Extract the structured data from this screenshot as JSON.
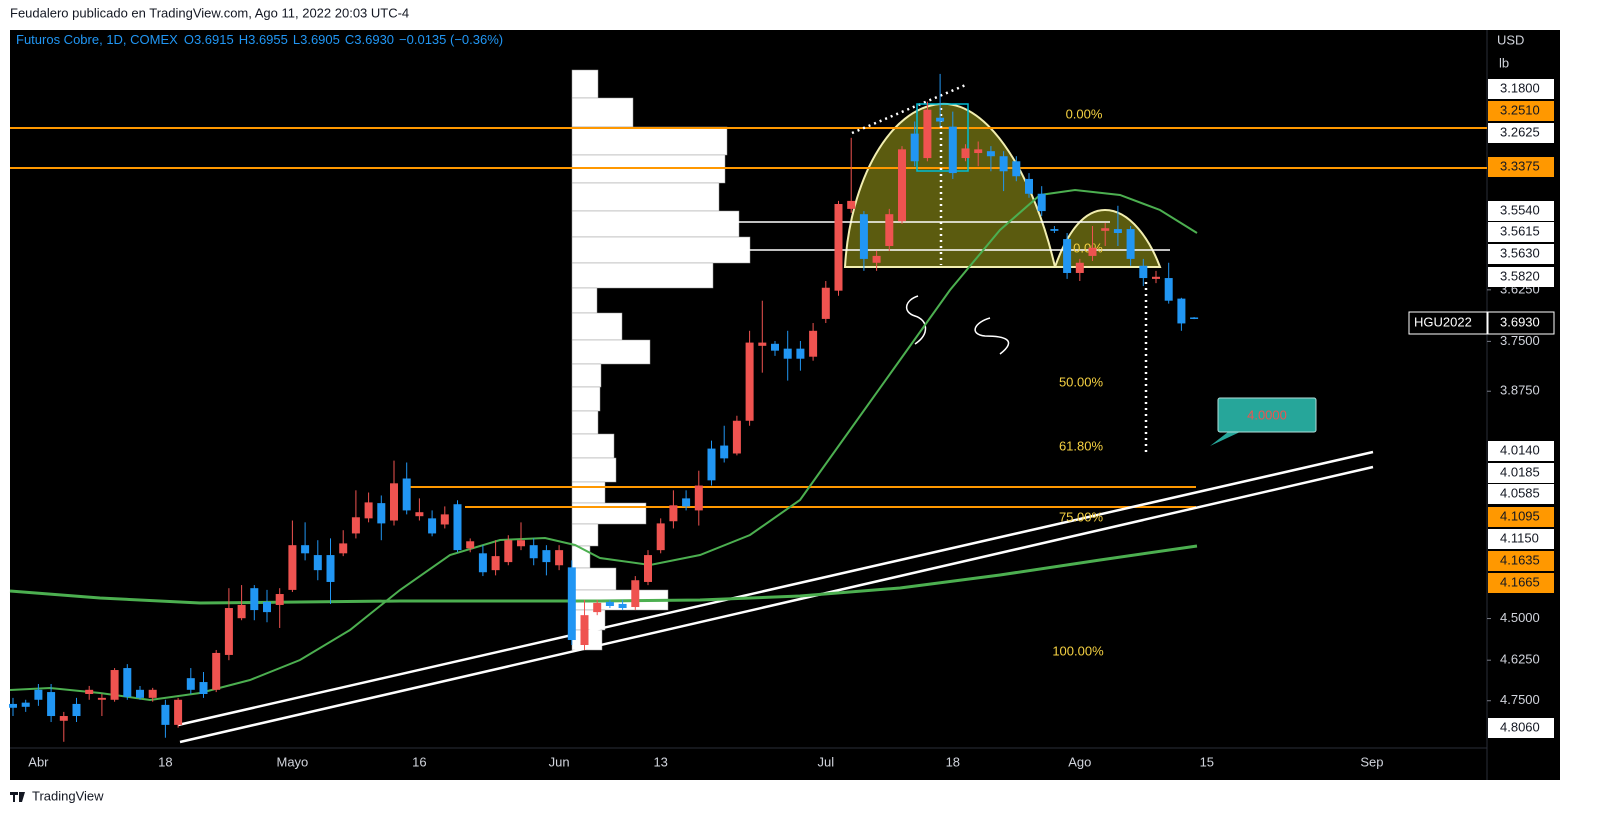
{
  "watermark": "Feudalero publicado en TradingView.com, Ago 11, 2022 20:03 UTC-4",
  "footer": "TradingView",
  "chart_data": {
    "type": "candlestick",
    "header": {
      "title": "Futuros Cobre, 1D, COMEX",
      "ohlc": [
        {
          "key": "O",
          "label": "3.6915"
        },
        {
          "key": "H",
          "label": "3.6955"
        },
        {
          "key": "L",
          "label": "3.6905"
        },
        {
          "key": "C",
          "label": "3.6930"
        }
      ],
      "change": "−0.0135 (−0.36%)"
    },
    "currency": "USD",
    "unit": "lb",
    "last_price": {
      "symbol": "HGU2022",
      "label": "3.6930"
    },
    "categories": [
      null,
      null,
      "Abr",
      null,
      null,
      null,
      null,
      null,
      null,
      null,
      null,
      null,
      "18",
      null,
      null,
      null,
      null,
      null,
      null,
      null,
      null,
      null,
      "Mayo",
      null,
      null,
      null,
      null,
      null,
      null,
      null,
      null,
      null,
      "16",
      null,
      null,
      null,
      null,
      null,
      null,
      null,
      null,
      null,
      null,
      "Jun",
      null,
      null,
      null,
      null,
      null,
      null,
      null,
      "13",
      null,
      null,
      null,
      null,
      null,
      null,
      null,
      null,
      null,
      null,
      null,
      null,
      "Jul",
      null,
      null,
      null,
      null,
      null,
      null,
      null,
      null,
      null,
      "18",
      null,
      null,
      null,
      null,
      null,
      null,
      null,
      null,
      null,
      "Ago",
      null,
      null,
      null,
      null,
      null,
      null,
      null,
      null,
      null,
      "15",
      null,
      null,
      null,
      null,
      null,
      null,
      null,
      null,
      null,
      null,
      null,
      null,
      "Sep",
      null,
      null,
      null,
      null,
      null,
      null,
      null,
      null,
      null
    ],
    "open": [
      4.76,
      4.756,
      4.716,
      4.723,
      4.813,
      4.76,
      4.729,
      4.747,
      4.747,
      4.649,
      4.716,
      4.741,
      4.763,
      4.826,
      4.68,
      4.692,
      4.716,
      4.609,
      4.499,
      4.411,
      4.451,
      4.46,
      4.416,
      4.288,
      4.316,
      4.316,
      4.311,
      4.255,
      4.213,
      4.171,
      4.219,
      4.104,
      4.207,
      4.213,
      4.23,
      4.174,
      4.297,
      4.311,
      4.359,
      4.336,
      4.291,
      4.288,
      4.302,
      4.345,
      4.351,
      4.579,
      4.481,
      4.451,
      4.457,
      4.466,
      4.393,
      4.302,
      4.221,
      4.158,
      4.191,
      4.024,
      4.016,
      4.037,
      3.951,
      3.761,
      3.756,
      3.768,
      3.768,
      3.788,
      3.695,
      3.627,
      3.437,
      3.449,
      3.561,
      3.522,
      3.465,
      3.271,
      3.324,
      3.237,
      3.256,
      3.324,
      3.313,
      3.309,
      3.32,
      3.331,
      3.37,
      3.403,
      3.483,
      3.506,
      3.585,
      3.545,
      3.487,
      3.483,
      3.483,
      3.568,
      3.599,
      3.597,
      3.646,
      3.6915,
      null,
      null,
      null,
      null,
      null,
      null,
      null,
      null,
      null,
      null,
      null,
      null,
      null,
      null,
      null,
      null,
      null,
      null,
      null,
      null,
      null,
      null,
      null
    ],
    "high": [
      4.798,
      4.785,
      4.766,
      4.817,
      4.88,
      4.817,
      4.747,
      4.798,
      4.753,
      4.747,
      4.747,
      4.753,
      4.867,
      4.835,
      4.729,
      4.741,
      4.723,
      4.625,
      4.505,
      4.505,
      4.511,
      4.528,
      4.422,
      4.331,
      4.388,
      4.457,
      4.319,
      4.269,
      4.224,
      4.274,
      4.233,
      4.202,
      4.219,
      4.263,
      4.241,
      4.308,
      4.308,
      4.376,
      4.374,
      4.345,
      4.302,
      4.345,
      4.374,
      4.359,
      4.579,
      4.594,
      4.49,
      4.469,
      4.475,
      4.475,
      4.402,
      4.311,
      4.241,
      4.191,
      4.233,
      4.123,
      4.061,
      4.042,
      3.964,
      3.828,
      3.786,
      3.848,
      3.823,
      3.798,
      3.705,
      3.639,
      3.446,
      3.58,
      3.58,
      3.533,
      3.471,
      3.342,
      3.331,
      3.256,
      3.37,
      3.331,
      3.342,
      3.353,
      3.397,
      3.375,
      3.412,
      3.453,
      3.492,
      3.599,
      3.604,
      3.557,
      3.522,
      3.522,
      3.568,
      3.616,
      3.609,
      3.658,
      3.724,
      3.6955,
      null,
      null,
      null,
      null,
      null,
      null,
      null,
      null,
      null,
      null,
      null,
      null,
      null,
      null,
      null,
      null,
      null,
      null,
      null,
      null,
      null,
      null,
      null
    ],
    "low": [
      4.741,
      4.747,
      4.698,
      4.698,
      4.785,
      4.741,
      4.704,
      4.729,
      4.649,
      4.637,
      4.704,
      4.71,
      4.747,
      4.741,
      4.649,
      4.661,
      4.594,
      4.411,
      4.402,
      4.402,
      4.416,
      4.411,
      4.219,
      4.224,
      4.274,
      4.269,
      4.246,
      4.136,
      4.142,
      4.15,
      4.056,
      4.061,
      4.158,
      4.191,
      4.18,
      4.163,
      4.269,
      4.288,
      4.274,
      4.26,
      4.224,
      4.269,
      4.288,
      4.288,
      4.331,
      4.445,
      4.445,
      4.445,
      4.445,
      4.376,
      4.302,
      4.213,
      4.136,
      4.136,
      4.083,
      4.003,
      3.964,
      3.938,
      3.724,
      3.651,
      3.749,
      3.724,
      3.749,
      3.705,
      3.604,
      3.419,
      3.28,
      3.442,
      3.533,
      3.437,
      3.298,
      3.245,
      3.203,
      3.145,
      3.224,
      3.294,
      3.288,
      3.298,
      3.309,
      3.32,
      3.357,
      3.386,
      3.476,
      3.492,
      3.552,
      3.476,
      3.469,
      3.43,
      3.476,
      3.552,
      3.58,
      3.561,
      3.644,
      3.6905,
      null,
      null,
      null,
      null,
      null,
      null,
      null,
      null,
      null,
      null,
      null,
      null,
      null,
      null,
      null,
      null,
      null,
      null,
      null,
      null,
      null,
      null,
      null
    ],
    "close": [
      4.772,
      4.769,
      4.747,
      4.798,
      4.798,
      4.798,
      4.716,
      4.741,
      4.655,
      4.738,
      4.741,
      4.716,
      4.826,
      4.747,
      4.716,
      4.729,
      4.603,
      4.469,
      4.46,
      4.475,
      4.481,
      4.428,
      4.288,
      4.311,
      4.359,
      4.393,
      4.283,
      4.21,
      4.169,
      4.227,
      4.117,
      4.191,
      4.196,
      4.255,
      4.202,
      4.302,
      4.277,
      4.365,
      4.319,
      4.274,
      4.274,
      4.325,
      4.336,
      4.302,
      4.564,
      4.49,
      4.454,
      4.463,
      4.469,
      4.388,
      4.316,
      4.227,
      4.177,
      4.18,
      4.123,
      4.109,
      4.05,
      3.951,
      3.753,
      3.753,
      3.773,
      3.793,
      3.793,
      3.724,
      3.62,
      3.426,
      3.419,
      3.552,
      3.545,
      3.449,
      3.305,
      3.331,
      3.22,
      3.245,
      3.357,
      3.303,
      3.305,
      3.32,
      3.353,
      3.364,
      3.403,
      3.442,
      3.487,
      3.585,
      3.561,
      3.526,
      3.481,
      3.492,
      3.552,
      3.597,
      3.594,
      3.651,
      3.706,
      3.693,
      null,
      null,
      null,
      null,
      null,
      null,
      null,
      null,
      null,
      null,
      null,
      null,
      null,
      null,
      null,
      null,
      null,
      null,
      null,
      null,
      null,
      null,
      null
    ],
    "up_color": "#2196f3",
    "down_color": "#ef5350",
    "log": true,
    "invert": true,
    "ylim": [
      3.1,
      4.9
    ],
    "yticks": [
      {
        "value": 3.625,
        "label": "3.6250"
      },
      {
        "value": 3.75,
        "label": "3.7500"
      },
      {
        "value": 3.875,
        "label": "3.8750"
      },
      {
        "value": 4.5,
        "label": "4.5000"
      },
      {
        "value": 4.625,
        "label": "4.6250"
      },
      {
        "value": 4.75,
        "label": "4.7500"
      }
    ],
    "grid": false,
    "price_badges": [
      {
        "label": "3.1800",
        "style": "white"
      },
      {
        "label": "3.2510",
        "style": "orange"
      },
      {
        "label": "3.2625",
        "style": "white"
      },
      {
        "label": "3.3375",
        "style": "orange"
      },
      {
        "label": "3.5540",
        "style": "white"
      },
      {
        "label": "3.5615",
        "style": "white"
      },
      {
        "label": "3.5630",
        "style": "white"
      },
      {
        "label": "3.5820",
        "style": "white"
      },
      {
        "label": "4.0140",
        "style": "white"
      },
      {
        "label": "4.0185",
        "style": "white"
      },
      {
        "label": "4.0585",
        "style": "white"
      },
      {
        "label": "4.1095",
        "style": "orange"
      },
      {
        "label": "4.1150",
        "style": "white"
      },
      {
        "label": "4.1635",
        "style": "orange"
      },
      {
        "label": "4.1665",
        "style": "orange"
      },
      {
        "label": "4.8060",
        "style": "white"
      }
    ],
    "fib_labels": [
      "0.00%",
      "0.0%",
      "50.00%",
      "61.80%",
      "75.00%",
      "100.00%"
    ],
    "callout": "4.0000"
  }
}
